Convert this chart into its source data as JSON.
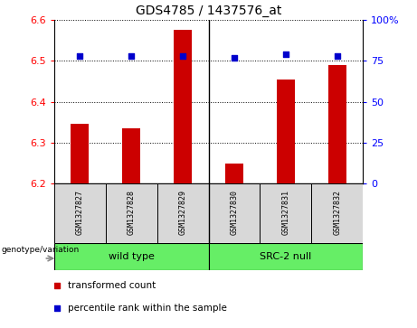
{
  "title": "GDS4785 / 1437576_at",
  "samples": [
    "GSM1327827",
    "GSM1327828",
    "GSM1327829",
    "GSM1327830",
    "GSM1327831",
    "GSM1327832"
  ],
  "red_values": [
    6.345,
    6.335,
    6.575,
    6.25,
    6.455,
    6.49
  ],
  "blue_values": [
    78,
    78,
    78,
    77,
    79,
    78
  ],
  "ylim_left": [
    6.2,
    6.6
  ],
  "ylim_right": [
    0,
    100
  ],
  "yticks_left": [
    6.2,
    6.3,
    6.4,
    6.5,
    6.6
  ],
  "yticks_right": [
    0,
    25,
    50,
    75,
    100
  ],
  "ytick_labels_right": [
    "0",
    "25",
    "50",
    "75",
    "100%"
  ],
  "group_labels": [
    "wild type",
    "SRC-2 null"
  ],
  "group_color": "#66ee66",
  "bar_color": "#cc0000",
  "dot_color": "#0000cc",
  "sample_box_color": "#d8d8d8",
  "chart_bg": "#ffffff",
  "legend_red_label": "transformed count",
  "legend_blue_label": "percentile rank within the sample",
  "genotype_label": "genotype/variation",
  "title_fontsize": 10,
  "tick_fontsize": 8,
  "label_fontsize": 8,
  "legend_fontsize": 7.5,
  "bar_width": 0.35
}
